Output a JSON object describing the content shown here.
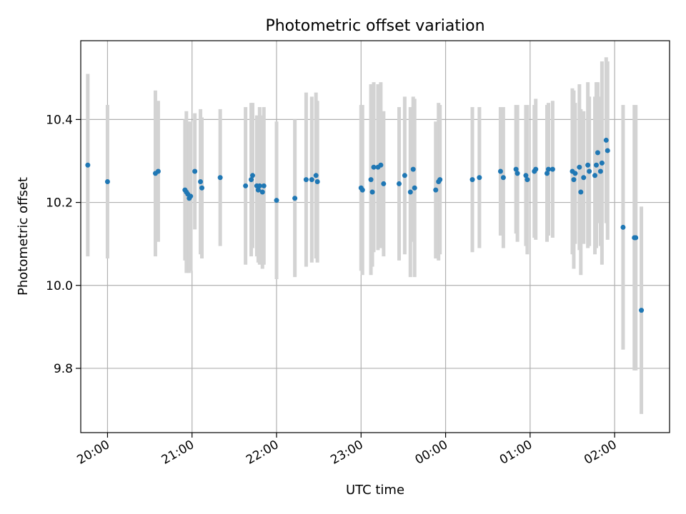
{
  "chart_data": {
    "type": "scatter",
    "title": "Photometric offset variation",
    "xlabel": "UTC time",
    "ylabel": "Photometric offset",
    "x_unit": "UTC time (HH:MM)",
    "xlim": [
      "19:41",
      "02:39"
    ],
    "ylim": [
      9.645,
      10.59
    ],
    "x_ticks": [
      "20:00",
      "21:00",
      "22:00",
      "23:00",
      "00:00",
      "01:00",
      "02:00"
    ],
    "y_ticks": [
      9.8,
      10.0,
      10.2,
      10.4
    ],
    "y_tick_labels": [
      "9.8",
      "10.0",
      "10.2",
      "10.4"
    ],
    "grid": true,
    "legend": false,
    "colors": {
      "point": "#1f77b4",
      "error_bar": "#d3d3d3",
      "grid": "#b0b0b0"
    },
    "series": [
      {
        "x": [
          "19:46",
          "20:00",
          "20:34",
          "20:36",
          "20:55",
          "20:56",
          "20:57",
          "20:58",
          "20:59",
          "21:02",
          "21:06",
          "21:07",
          "21:20",
          "21:38",
          "21:42",
          "21:43",
          "21:46",
          "21:47",
          "21:48",
          "21:50",
          "21:51",
          "22:00",
          "22:13",
          "22:21",
          "22:25",
          "22:28",
          "22:29",
          "23:00",
          "23:01",
          "23:07",
          "23:08",
          "23:09",
          "23:12",
          "23:14",
          "23:16",
          "23:27",
          "23:31",
          "23:35",
          "23:37",
          "23:38",
          "23:53",
          "23:55",
          "23:56",
          "00:19",
          "00:24",
          "00:39",
          "00:41",
          "00:50",
          "00:51",
          "00:57",
          "00:58",
          "01:03",
          "01:04",
          "01:12",
          "01:13",
          "01:16",
          "01:30",
          "01:31",
          "01:32",
          "01:35",
          "01:36",
          "01:38",
          "01:41",
          "01:42",
          "01:46",
          "01:47",
          "01:48",
          "01:50",
          "01:51",
          "01:54",
          "01:55",
          "02:06",
          "02:14",
          "02:15",
          "02:19"
        ],
        "y": [
          10.29,
          10.25,
          10.27,
          10.275,
          10.23,
          10.225,
          10.22,
          10.21,
          10.215,
          10.275,
          10.25,
          10.235,
          10.26,
          10.24,
          10.255,
          10.265,
          10.24,
          10.23,
          10.24,
          10.225,
          10.24,
          10.205,
          10.21,
          10.255,
          10.255,
          10.265,
          10.25,
          10.235,
          10.23,
          10.255,
          10.225,
          10.285,
          10.285,
          10.29,
          10.245,
          10.245,
          10.265,
          10.225,
          10.28,
          10.235,
          10.23,
          10.25,
          10.255,
          10.255,
          10.26,
          10.275,
          10.26,
          10.28,
          10.27,
          10.265,
          10.255,
          10.275,
          10.28,
          10.27,
          10.28,
          10.28,
          10.275,
          10.255,
          10.27,
          10.285,
          10.225,
          10.26,
          10.29,
          10.275,
          10.265,
          10.29,
          10.32,
          10.275,
          10.295,
          10.35,
          10.325,
          10.14,
          10.115,
          10.115,
          9.94
        ],
        "yerr": [
          0.22,
          0.185,
          0.2,
          0.17,
          0.17,
          0.195,
          0.175,
          0.18,
          0.18,
          0.14,
          0.175,
          0.17,
          0.165,
          0.19,
          0.185,
          0.175,
          0.17,
          0.175,
          0.19,
          0.185,
          0.19,
          0.19,
          0.19,
          0.21,
          0.2,
          0.2,
          0.195,
          0.2,
          0.205,
          0.23,
          0.18,
          0.205,
          0.2,
          0.2,
          0.175,
          0.185,
          0.19,
          0.205,
          0.175,
          0.215,
          0.165,
          0.19,
          0.18,
          0.175,
          0.17,
          0.155,
          0.17,
          0.155,
          0.165,
          0.17,
          0.18,
          0.16,
          0.17,
          0.165,
          0.16,
          0.165,
          0.2,
          0.215,
          0.17,
          0.2,
          0.2,
          0.16,
          0.2,
          0.18,
          0.19,
          0.2,
          0.17,
          0.18,
          0.245,
          0.2,
          0.215,
          0.295,
          0.32,
          0.32,
          0.25
        ]
      }
    ]
  }
}
